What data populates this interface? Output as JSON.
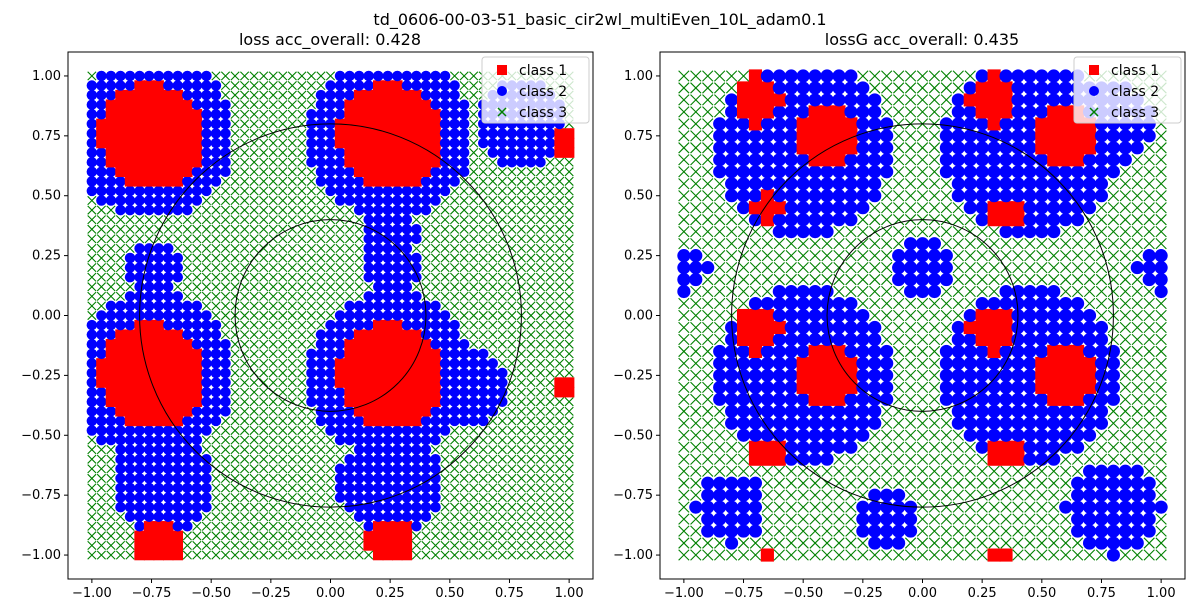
{
  "suptitle": "td_0606-00-03-51_basic_cir2wl_multiEven_10L_adam0.1",
  "colors": {
    "class1": "#ff0000",
    "class2": "#0000ff",
    "class3": "#008000",
    "axes": "#000000",
    "circle": "#000000"
  },
  "chart_data": [
    {
      "type": "scatter",
      "title": "loss acc_overall: 0.428",
      "xlim": [
        -1.1,
        1.1
      ],
      "ylim": [
        -1.1,
        1.1
      ],
      "xticks": [
        -1.0,
        -0.75,
        -0.5,
        -0.25,
        0.0,
        0.25,
        0.5,
        0.75,
        1.0
      ],
      "yticks": [
        -1.0,
        -0.75,
        -0.5,
        -0.25,
        0.0,
        0.25,
        0.5,
        0.75,
        1.0
      ],
      "xtick_labels": [
        "−1.00",
        "−0.75",
        "−0.50",
        "−0.25",
        "0.00",
        "0.25",
        "0.50",
        "0.75",
        "1.00"
      ],
      "ytick_labels": [
        "−1.00",
        "−0.75",
        "−0.50",
        "−0.25",
        "0.00",
        "0.25",
        "0.50",
        "0.75",
        "1.00"
      ],
      "grid": {
        "x_range": [
          -1.0,
          1.0
        ],
        "y_range": [
          -1.0,
          1.0
        ],
        "n": 51
      },
      "circles": [
        {
          "center": [
            0,
            0
          ],
          "r": 0.8
        },
        {
          "center": [
            0,
            0
          ],
          "r": 0.4
        }
      ],
      "legend": {
        "position": "top-right",
        "entries": [
          "class 1",
          "class 2",
          "class 3"
        ]
      },
      "class1_regions": [
        {
          "cx": -0.75,
          "cy": 0.75,
          "r": 0.22
        },
        {
          "cx": 0.25,
          "cy": 0.75,
          "r": 0.22
        },
        {
          "cx": -0.75,
          "cy": -0.25,
          "r": 0.22
        },
        {
          "cx": 0.25,
          "cy": -0.25,
          "r": 0.22
        },
        {
          "cx": -0.72,
          "cy": -0.95,
          "r": 0.1
        },
        {
          "cx": 0.25,
          "cy": -0.95,
          "r": 0.1
        },
        {
          "cx": 0.98,
          "cy": 0.72,
          "r": 0.06
        },
        {
          "cx": 0.98,
          "cy": -0.3,
          "r": 0.06
        }
      ],
      "class2_regions": [
        {
          "cx": -0.75,
          "cy": 0.75,
          "r": 0.35
        },
        {
          "cx": 0.25,
          "cy": 0.75,
          "r": 0.35
        },
        {
          "cx": -0.75,
          "cy": -0.25,
          "r": 0.35
        },
        {
          "cx": 0.25,
          "cy": -0.25,
          "r": 0.35
        },
        {
          "cx": -0.75,
          "cy": 0.2,
          "r": 0.12
        },
        {
          "cx": 0.25,
          "cy": 0.2,
          "r": 0.12
        },
        {
          "cx": 0.8,
          "cy": 0.8,
          "r": 0.18
        },
        {
          "cx": 0.6,
          "cy": -0.3,
          "r": 0.15
        },
        {
          "cx": -0.7,
          "cy": -0.7,
          "r": 0.22
        },
        {
          "cx": 0.25,
          "cy": -0.7,
          "r": 0.22
        },
        {
          "cx": 0.25,
          "cy": 0.35,
          "r": 0.12
        }
      ]
    },
    {
      "type": "scatter",
      "title": "lossG acc_overall: 0.435",
      "xlim": [
        -1.1,
        1.1
      ],
      "ylim": [
        -1.1,
        1.1
      ],
      "xticks": [
        -1.0,
        -0.75,
        -0.5,
        -0.25,
        0.0,
        0.25,
        0.5,
        0.75,
        1.0
      ],
      "yticks": [
        -1.0,
        -0.75,
        -0.5,
        -0.25,
        0.0,
        0.25,
        0.5,
        0.75,
        1.0
      ],
      "xtick_labels": [
        "−1.00",
        "−0.75",
        "−0.50",
        "−0.25",
        "0.00",
        "0.25",
        "0.50",
        "0.75",
        "1.00"
      ],
      "ytick_labels": [
        "−1.00",
        "−0.75",
        "−0.50",
        "−0.25",
        "0.00",
        "0.25",
        "0.50",
        "0.75",
        "1.00"
      ],
      "grid": {
        "x_range": [
          -1.0,
          1.0
        ],
        "y_range": [
          -1.0,
          1.0
        ],
        "n": 41
      },
      "circles": [
        {
          "center": [
            0,
            0
          ],
          "r": 0.8
        },
        {
          "center": [
            0,
            0
          ],
          "r": 0.4
        }
      ],
      "legend": {
        "position": "top-right",
        "entries": [
          "class 1",
          "class 2",
          "class 3"
        ]
      },
      "class1_regions": [
        {
          "cx": -0.7,
          "cy": 0.9,
          "r": 0.1
        },
        {
          "cx": -0.4,
          "cy": 0.75,
          "r": 0.14
        },
        {
          "cx": 0.3,
          "cy": 0.9,
          "r": 0.1
        },
        {
          "cx": 0.6,
          "cy": 0.75,
          "r": 0.13
        },
        {
          "cx": -0.7,
          "cy": -0.05,
          "r": 0.1
        },
        {
          "cx": -0.4,
          "cy": -0.25,
          "r": 0.14
        },
        {
          "cx": 0.3,
          "cy": -0.05,
          "r": 0.1
        },
        {
          "cx": 0.6,
          "cy": -0.25,
          "r": 0.14
        },
        {
          "cx": 0.35,
          "cy": 0.42,
          "r": 0.06
        },
        {
          "cx": -0.65,
          "cy": 0.45,
          "r": 0.06
        },
        {
          "cx": 0.35,
          "cy": -0.58,
          "r": 0.06
        },
        {
          "cx": -0.65,
          "cy": -0.58,
          "r": 0.06
        },
        {
          "cx": -0.65,
          "cy": -1.0,
          "r": 0.04
        },
        {
          "cx": 0.33,
          "cy": -1.0,
          "r": 0.04
        }
      ],
      "class2_regions": [
        {
          "cx": -0.5,
          "cy": 0.7,
          "r": 0.38
        },
        {
          "cx": 0.45,
          "cy": 0.7,
          "r": 0.38
        },
        {
          "cx": -0.5,
          "cy": -0.25,
          "r": 0.38
        },
        {
          "cx": 0.45,
          "cy": -0.25,
          "r": 0.38
        },
        {
          "cx": 0.0,
          "cy": 0.2,
          "r": 0.12
        },
        {
          "cx": -0.15,
          "cy": -0.85,
          "r": 0.14
        },
        {
          "cx": 0.8,
          "cy": -0.8,
          "r": 0.2
        },
        {
          "cx": -0.8,
          "cy": -0.8,
          "r": 0.15
        },
        {
          "cx": -1.0,
          "cy": 0.2,
          "r": 0.1
        },
        {
          "cx": 1.0,
          "cy": 0.2,
          "r": 0.1
        },
        {
          "cx": 0.8,
          "cy": 0.8,
          "r": 0.18
        }
      ]
    }
  ]
}
